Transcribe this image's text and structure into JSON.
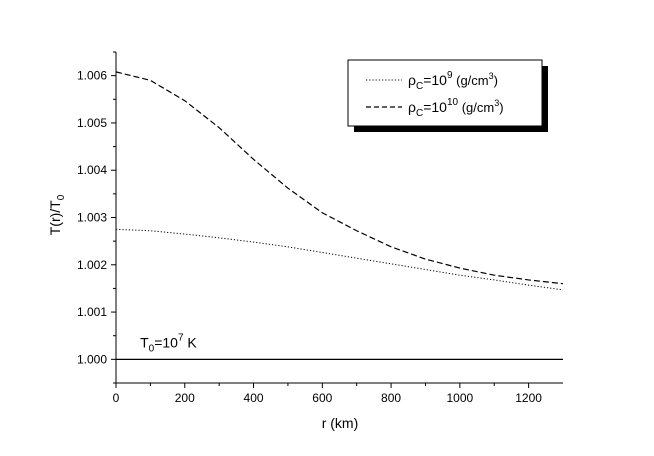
{
  "chart_data": {
    "type": "line",
    "xlabel": "r (km)",
    "ylabel": "T(r)/T",
    "ylabel_sub": "0",
    "xlim": [
      0,
      1300
    ],
    "ylim": [
      0.9995,
      1.0065
    ],
    "x_ticks": [
      0,
      200,
      400,
      600,
      800,
      1000,
      1200
    ],
    "y_ticks": [
      1.0,
      1.001,
      1.002,
      1.003,
      1.004,
      1.005,
      1.006
    ],
    "x_tick_labels": [
      "0",
      "200",
      "400",
      "600",
      "800",
      "1000",
      "1200"
    ],
    "y_tick_labels": [
      "1.000",
      "1.001",
      "1.002",
      "1.003",
      "1.004",
      "1.005",
      "1.006"
    ],
    "grid": false,
    "legend_position": "top-right",
    "series": [
      {
        "name": "ρC=10^9 (g/cm^3)",
        "legend": {
          "rho": "ρ",
          "rho_sub": "C",
          "eq": "=10",
          "exp": "9",
          "unit_open": " (g/cm",
          "unit_exp": "3",
          "unit_close": ")"
        },
        "style": "dotted",
        "x": [
          0,
          100,
          200,
          300,
          400,
          500,
          600,
          700,
          800,
          900,
          1000,
          1100,
          1200,
          1300
        ],
        "y": [
          1.00275,
          1.00272,
          1.00265,
          1.00257,
          1.00248,
          1.00238,
          1.00226,
          1.00214,
          1.00202,
          1.0019,
          1.00178,
          1.00168,
          1.00157,
          1.00147
        ]
      },
      {
        "name": "ρC=10^10 (g/cm^3)",
        "legend": {
          "rho": "ρ",
          "rho_sub": "C",
          "eq": "=10",
          "exp": "10",
          "unit_open": " (g/cm",
          "unit_exp": "3",
          "unit_close": ")"
        },
        "style": "dashed",
        "x": [
          0,
          100,
          200,
          300,
          400,
          500,
          600,
          700,
          800,
          900,
          1000,
          1100,
          1200,
          1300
        ],
        "y": [
          1.00608,
          1.0059,
          1.00547,
          1.0049,
          1.00423,
          1.00362,
          1.0031,
          1.00272,
          1.00238,
          1.00212,
          1.00193,
          1.00178,
          1.00168,
          1.0016
        ]
      },
      {
        "name": "T0=10^7 K",
        "style": "solid",
        "x": [
          0,
          1300
        ],
        "y": [
          1.0,
          1.0
        ]
      }
    ],
    "annotation": {
      "base": "T",
      "base_sub": "0",
      "eq": "=10",
      "exp": "7",
      "unit": " K",
      "x": 70,
      "y": 1.00025
    }
  }
}
